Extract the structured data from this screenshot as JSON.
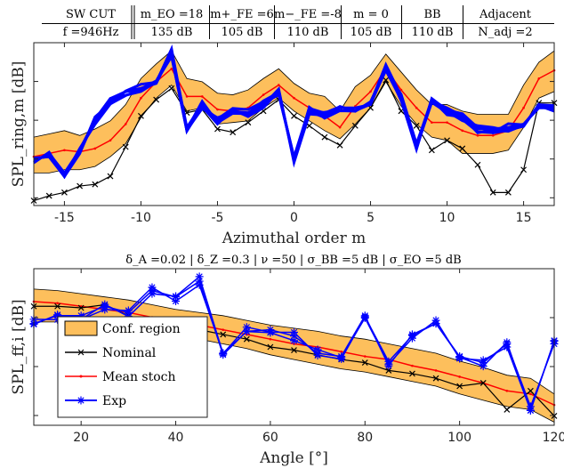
{
  "header_table": {
    "rows": [
      [
        "SW CUT",
        "m_EO =18",
        "m+_FE =6",
        "m−_FE =-8",
        "m = 0",
        "BB",
        "Adjacent"
      ],
      [
        "f =946Hz",
        "135 dB",
        "105 dB",
        "110 dB",
        "105 dB",
        "110 dB",
        "N_adj =2"
      ]
    ]
  },
  "bottom_params": "δ_A =0.02 | δ_Z =0.3 | ν =50 | σ_BB =5 dB | σ_EO =5 dB",
  "colors": {
    "confidence_fill": "#fdbf5c",
    "nominal": "#000000",
    "mean_stoch": "#ff0000",
    "exp": "#0000ff"
  },
  "chart_data": [
    {
      "type": "line",
      "xlabel": "Azimuthal order m",
      "ylabel": "SPL_ring,m [dB]",
      "xlim": [
        -17,
        17
      ],
      "ylim": [
        0,
        1
      ],
      "xticks": [
        -15,
        -10,
        -5,
        0,
        5,
        10,
        15
      ],
      "yticks_count": 4,
      "grid": false,
      "x": [
        -17,
        -16,
        -15,
        -14,
        -13,
        -12,
        -11,
        -10,
        -9,
        -8,
        -7,
        -6,
        -5,
        -4,
        -3,
        -2,
        -1,
        0,
        1,
        2,
        3,
        4,
        5,
        6,
        7,
        8,
        9,
        10,
        11,
        12,
        13,
        14,
        15,
        16,
        17
      ],
      "series": [
        {
          "name": "Conf. region",
          "upper": [
            0.42,
            0.44,
            0.46,
            0.43,
            0.47,
            0.52,
            0.62,
            0.78,
            0.87,
            0.95,
            0.78,
            0.76,
            0.69,
            0.68,
            0.71,
            0.78,
            0.84,
            0.75,
            0.69,
            0.67,
            0.58,
            0.73,
            0.8,
            0.93,
            0.82,
            0.71,
            0.62,
            0.62,
            0.58,
            0.56,
            0.56,
            0.56,
            0.74,
            0.88,
            0.95
          ],
          "lower": [
            0.2,
            0.2,
            0.22,
            0.22,
            0.24,
            0.3,
            0.38,
            0.54,
            0.66,
            0.74,
            0.58,
            0.6,
            0.5,
            0.51,
            0.52,
            0.6,
            0.66,
            0.58,
            0.52,
            0.46,
            0.41,
            0.5,
            0.6,
            0.76,
            0.61,
            0.5,
            0.42,
            0.4,
            0.32,
            0.32,
            0.32,
            0.34,
            0.48,
            0.66,
            0.7
          ]
        },
        {
          "name": "Nominal",
          "values": [
            0.03,
            0.06,
            0.08,
            0.12,
            0.13,
            0.18,
            0.36,
            0.55,
            0.65,
            0.72,
            0.57,
            0.59,
            0.47,
            0.45,
            0.51,
            0.58,
            0.65,
            0.55,
            0.49,
            0.42,
            0.37,
            0.49,
            0.6,
            0.77,
            0.58,
            0.49,
            0.34,
            0.4,
            0.35,
            0.25,
            0.08,
            0.08,
            0.22,
            0.63,
            0.63
          ]
        },
        {
          "name": "Mean stoch",
          "values": [
            0.3,
            0.32,
            0.34,
            0.33,
            0.35,
            0.4,
            0.5,
            0.66,
            0.76,
            0.84,
            0.67,
            0.67,
            0.59,
            0.58,
            0.6,
            0.68,
            0.74,
            0.66,
            0.6,
            0.55,
            0.48,
            0.61,
            0.7,
            0.84,
            0.71,
            0.6,
            0.51,
            0.51,
            0.46,
            0.43,
            0.43,
            0.46,
            0.6,
            0.78,
            0.83
          ]
        },
        {
          "name": "Exp",
          "values": [
            0.27,
            0.32,
            0.2,
            0.34,
            0.52,
            0.64,
            0.7,
            0.72,
            0.75,
            0.94,
            0.48,
            0.62,
            0.52,
            0.58,
            0.57,
            0.62,
            0.7,
            0.28,
            0.58,
            0.56,
            0.6,
            0.6,
            0.62,
            0.84,
            0.66,
            0.37,
            0.64,
            0.58,
            0.54,
            0.47,
            0.47,
            0.48,
            0.5,
            0.6,
            0.6
          ],
          "extra_traces": 5
        }
      ]
    },
    {
      "type": "line",
      "xlabel": "Angle [°]",
      "ylabel": "SPL_ff,i [dB]",
      "xlim": [
        10,
        120
      ],
      "ylim": [
        0,
        1
      ],
      "xticks": [
        20,
        40,
        60,
        80,
        100,
        120
      ],
      "yticks_count": 3,
      "grid": false,
      "x": [
        10,
        15,
        20,
        25,
        30,
        35,
        40,
        45,
        50,
        55,
        60,
        65,
        70,
        75,
        80,
        85,
        90,
        95,
        100,
        105,
        110,
        115,
        120
      ],
      "legend_location": "bottom-left",
      "series": [
        {
          "name": "Conf. region",
          "upper": [
            0.87,
            0.86,
            0.84,
            0.82,
            0.8,
            0.77,
            0.74,
            0.72,
            0.7,
            0.67,
            0.64,
            0.62,
            0.6,
            0.57,
            0.55,
            0.52,
            0.49,
            0.46,
            0.41,
            0.37,
            0.32,
            0.3,
            0.2
          ],
          "lower": [
            0.66,
            0.66,
            0.66,
            0.65,
            0.62,
            0.59,
            0.57,
            0.55,
            0.52,
            0.49,
            0.45,
            0.42,
            0.39,
            0.36,
            0.34,
            0.31,
            0.28,
            0.25,
            0.2,
            0.16,
            0.12,
            0.1,
            0.02
          ]
        },
        {
          "name": "Nominal",
          "values": [
            0.76,
            0.76,
            0.75,
            0.77,
            0.7,
            0.66,
            0.63,
            0.61,
            0.58,
            0.55,
            0.5,
            0.48,
            0.45,
            0.42,
            0.4,
            0.35,
            0.33,
            0.3,
            0.25,
            0.27,
            0.1,
            0.22,
            0.06
          ]
        },
        {
          "name": "Mean stoch",
          "values": [
            0.79,
            0.78,
            0.76,
            0.74,
            0.72,
            0.69,
            0.66,
            0.64,
            0.61,
            0.58,
            0.55,
            0.52,
            0.5,
            0.47,
            0.44,
            0.42,
            0.38,
            0.35,
            0.31,
            0.27,
            0.22,
            0.2,
            0.13
          ]
        },
        {
          "name": "Exp",
          "values": [
            0.65,
            0.7,
            0.7,
            0.76,
            0.72,
            0.86,
            0.82,
            0.92,
            0.45,
            0.6,
            0.61,
            0.57,
            0.46,
            0.44,
            0.7,
            0.38,
            0.58,
            0.65,
            0.44,
            0.4,
            0.52,
            0.12,
            0.52
          ],
          "extra_traces": 2
        }
      ]
    }
  ]
}
